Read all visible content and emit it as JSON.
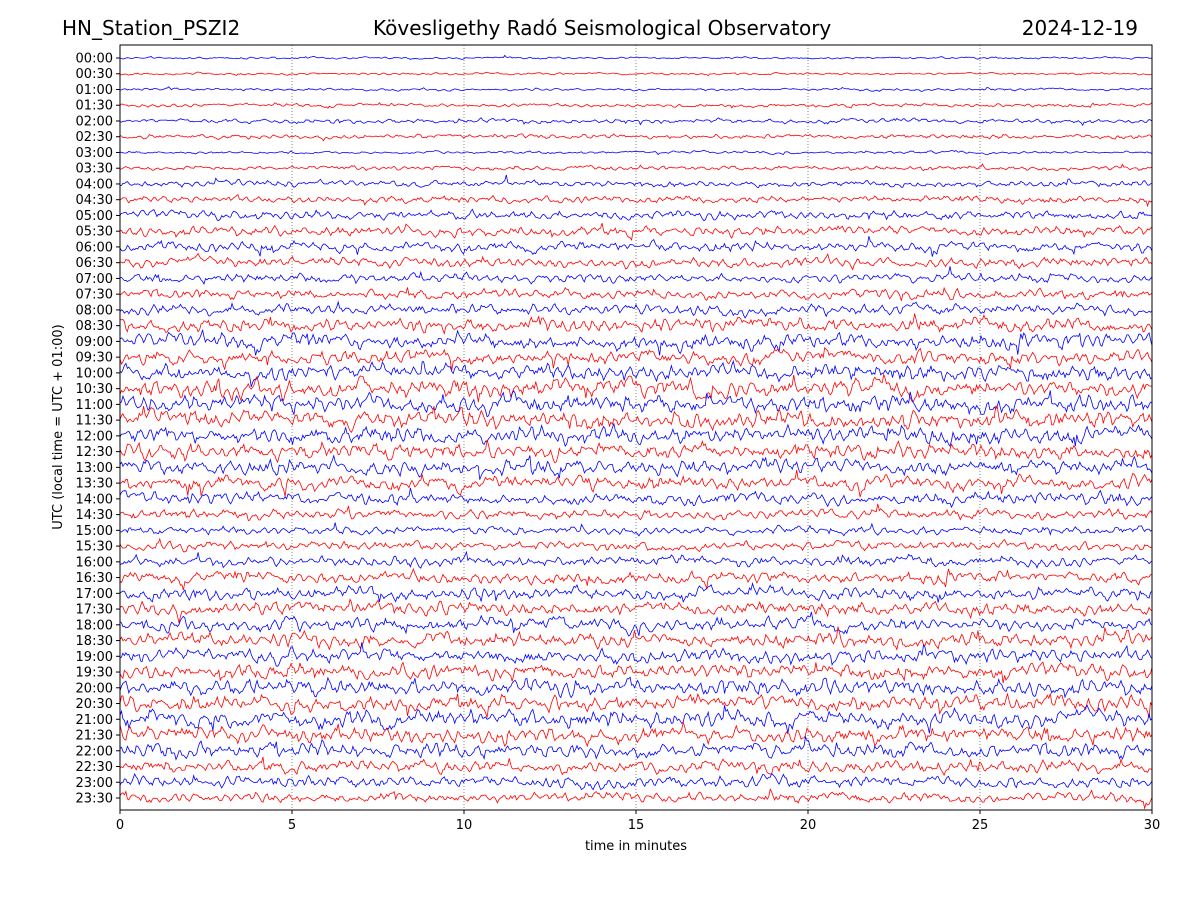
{
  "header": {
    "station": "HN_Station_PSZI2",
    "observatory": "Kövesligethy Radó Seismological Observatory",
    "date": "2024-12-19"
  },
  "chart_data": {
    "type": "line",
    "title": "Kövesligethy Radó Seismological Observatory",
    "xlabel": "time in minutes",
    "ylabel": "UTC (local time = UTC + 01:00)",
    "xlim": [
      0,
      30
    ],
    "xticks": [
      0,
      5,
      10,
      15,
      20,
      25,
      30
    ],
    "grid": "vertical dotted at x ticks",
    "series_colors": [
      "#0000ff",
      "#ff0000"
    ],
    "rows": [
      "00:00",
      "00:30",
      "01:00",
      "01:30",
      "02:00",
      "02:30",
      "03:00",
      "03:30",
      "04:00",
      "04:30",
      "05:00",
      "05:30",
      "06:00",
      "06:30",
      "07:00",
      "07:30",
      "08:00",
      "08:30",
      "09:00",
      "09:30",
      "10:00",
      "10:30",
      "11:00",
      "11:30",
      "12:00",
      "12:30",
      "13:00",
      "13:30",
      "14:00",
      "14:30",
      "15:00",
      "15:30",
      "16:00",
      "16:30",
      "17:00",
      "17:30",
      "18:00",
      "18:30",
      "19:00",
      "19:30",
      "20:00",
      "20:30",
      "21:00",
      "21:30",
      "22:00",
      "22:30",
      "23:00",
      "23:30"
    ],
    "relative_amplitude": [
      0.12,
      0.12,
      0.15,
      0.2,
      0.25,
      0.25,
      0.15,
      0.25,
      0.35,
      0.4,
      0.5,
      0.55,
      0.55,
      0.55,
      0.5,
      0.55,
      0.6,
      0.8,
      0.85,
      0.8,
      0.9,
      1.0,
      1.0,
      1.0,
      0.95,
      0.9,
      0.85,
      0.8,
      0.7,
      0.55,
      0.45,
      0.5,
      0.6,
      0.65,
      0.7,
      0.75,
      0.75,
      0.8,
      0.8,
      0.85,
      0.9,
      0.9,
      0.95,
      0.9,
      0.85,
      0.7,
      0.65,
      0.55
    ]
  }
}
